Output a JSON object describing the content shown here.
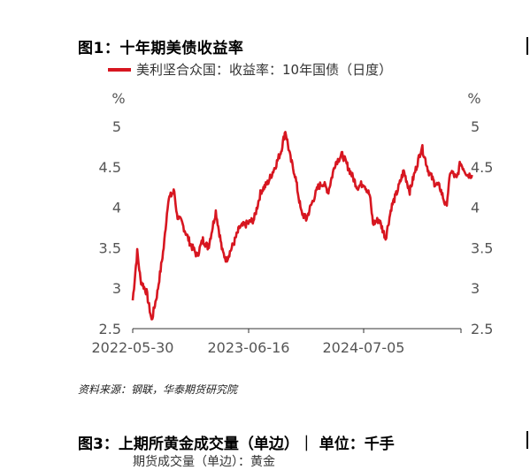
{
  "figure1": {
    "title": "图1：十年期美债收益率",
    "legend_label": "美利坚合众国：收益率：10年国债（日度）",
    "source": "资料来源：钢联，华泰期货研究院"
  },
  "figure3": {
    "title": "图3：上期所黄金成交量（单边）｜  单位：千手",
    "subtitle": "期货成交量（单边）：黄金"
  },
  "chart_data": {
    "type": "line",
    "title": "",
    "xlabel": "",
    "ylabel": "%",
    "ylabel_right": "%",
    "ylim": [
      2.5,
      5
    ],
    "yticks": [
      "2.5",
      "3",
      "3.5",
      "4",
      "4.5",
      "5"
    ],
    "xticks": [
      "2022-05-30",
      "2023-06-16",
      "2024-07-05"
    ],
    "grid": false,
    "legend": "top-left",
    "series_color": "#d71620",
    "series": [
      {
        "name": "美利坚合众国：收益率：10年国债（日度）",
        "x": [
          "2022-05-30",
          "2022-06-14",
          "2022-06-25",
          "2022-07-15",
          "2022-08-01",
          "2022-08-20",
          "2022-09-10",
          "2022-09-25",
          "2022-10-15",
          "2022-10-24",
          "2022-11-10",
          "2022-12-07",
          "2022-12-30",
          "2023-01-18",
          "2023-02-05",
          "2023-03-02",
          "2023-03-24",
          "2023-04-06",
          "2023-04-30",
          "2023-05-20",
          "2023-06-16",
          "2023-07-07",
          "2023-07-30",
          "2023-08-21",
          "2023-09-15",
          "2023-10-05",
          "2023-10-19",
          "2023-11-05",
          "2023-11-20",
          "2023-12-10",
          "2023-12-27",
          "2024-01-15",
          "2024-02-05",
          "2024-02-20",
          "2024-03-10",
          "2024-04-02",
          "2024-04-25",
          "2024-05-20",
          "2024-06-14",
          "2024-07-05",
          "2024-07-25",
          "2024-08-05",
          "2024-08-25",
          "2024-09-16",
          "2024-10-05",
          "2024-10-25",
          "2024-11-15",
          "2024-12-05",
          "2024-12-31",
          "2025-01-14",
          "2025-02-05",
          "2025-02-25",
          "2025-03-15",
          "2025-04-05",
          "2025-04-20",
          "2025-05-10",
          "2025-05-22",
          "2025-06-15",
          "2025-06-30"
        ],
        "values": [
          2.85,
          3.45,
          3.1,
          2.95,
          2.6,
          2.95,
          3.5,
          4.1,
          4.2,
          3.9,
          3.8,
          3.55,
          3.4,
          3.6,
          3.5,
          3.95,
          3.45,
          3.35,
          3.55,
          3.75,
          3.8,
          3.85,
          4.2,
          4.3,
          4.5,
          4.7,
          4.95,
          4.6,
          4.4,
          3.95,
          3.85,
          4.05,
          4.25,
          4.3,
          4.2,
          4.55,
          4.65,
          4.45,
          4.25,
          4.3,
          4.15,
          3.8,
          3.85,
          3.62,
          4.0,
          4.2,
          4.45,
          4.2,
          4.55,
          4.75,
          4.45,
          4.3,
          4.25,
          4.0,
          4.45,
          4.35,
          4.55,
          4.4,
          4.4
        ]
      }
    ]
  }
}
